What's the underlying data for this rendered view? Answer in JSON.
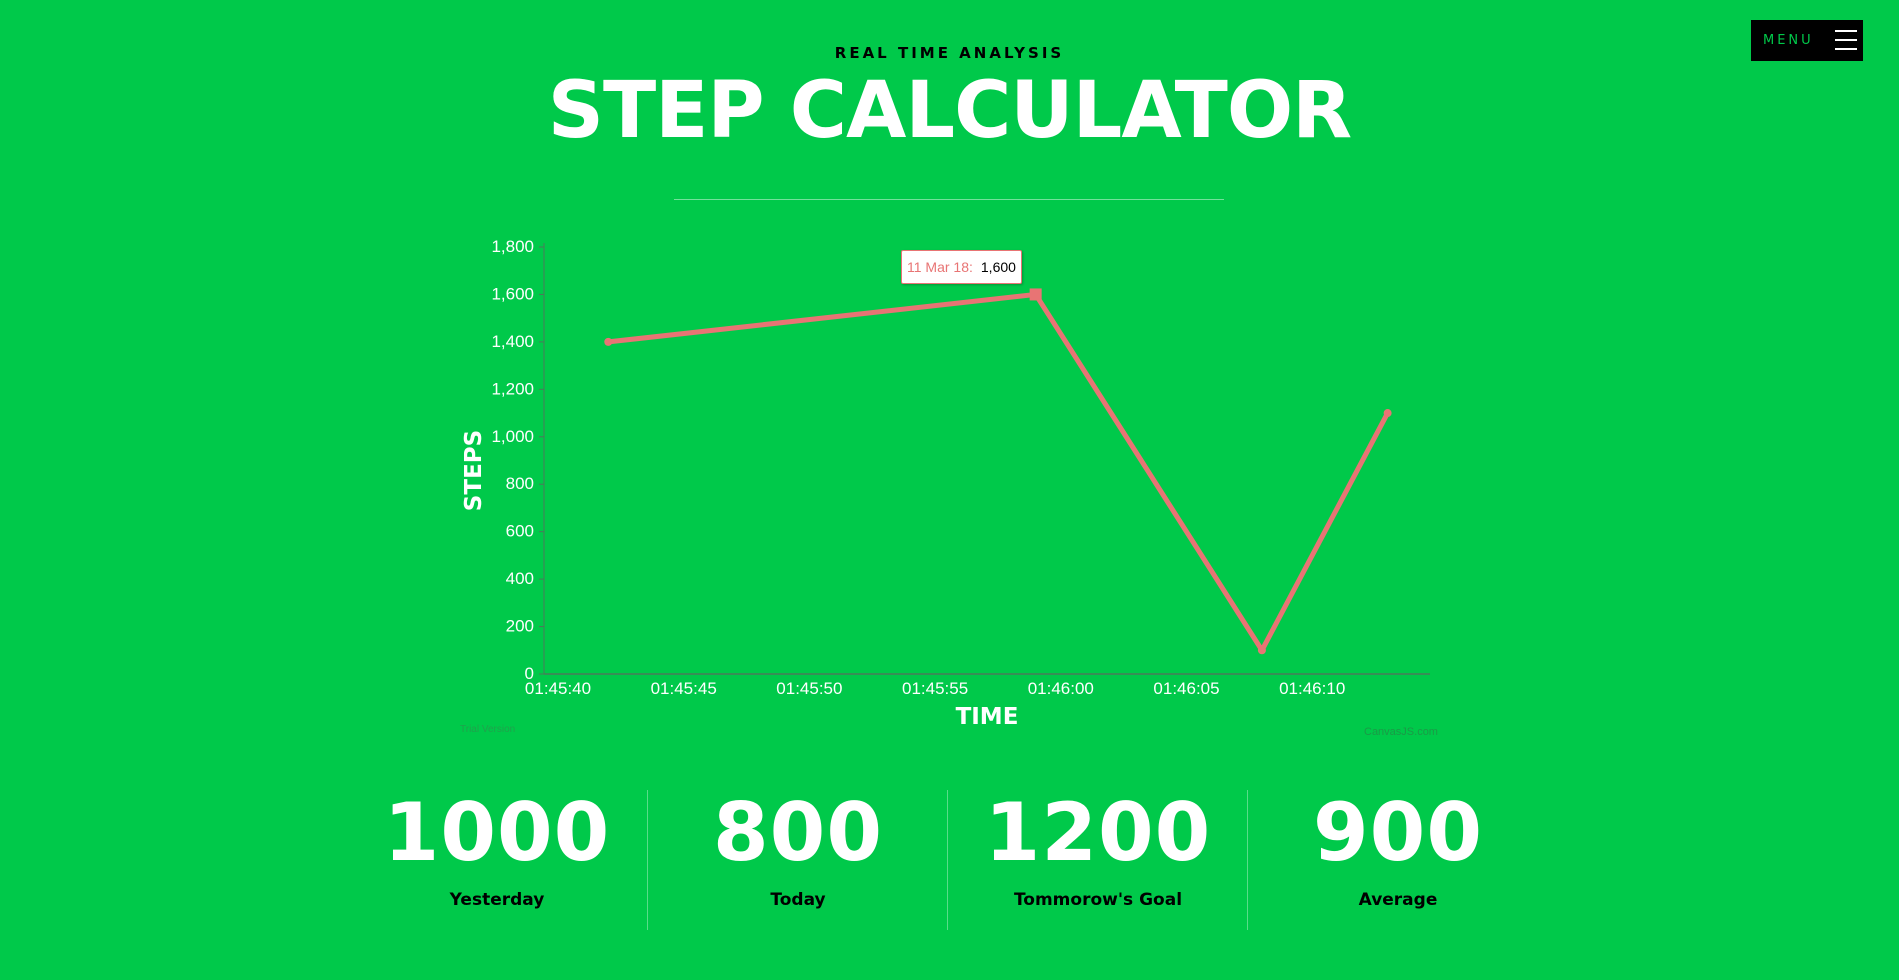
{
  "menu": {
    "label": "MENU"
  },
  "header": {
    "subtitle": "REAL TIME ANALYSIS",
    "title": "STEP CALCULATOR"
  },
  "colors": {
    "background": "#00c94a",
    "line": "#e87474",
    "text_light": "#ffffff",
    "text_dark": "#000000"
  },
  "chart_data": {
    "type": "line",
    "x": [
      "01:45:42",
      "01:45:59",
      "01:46:08",
      "01:46:13"
    ],
    "values": [
      1400,
      1600,
      100,
      1100
    ],
    "xlabel": "TIME",
    "ylabel": "STEPS",
    "ylim": [
      0,
      1800
    ],
    "x_ticks": [
      "01:45:40",
      "01:45:45",
      "01:45:50",
      "01:45:55",
      "01:46:00",
      "01:46:05",
      "01:46:10"
    ],
    "y_ticks": [
      "0",
      "200",
      "400",
      "600",
      "800",
      "1,000",
      "1,200",
      "1,400",
      "1,600",
      "1,800"
    ],
    "grid": false,
    "tooltip": {
      "label": "11 Mar 18:",
      "value": "1,600"
    },
    "watermark": "CanvasJS.com",
    "trial_text": "Trial Version"
  },
  "stats": [
    {
      "value": "1000",
      "label": "Yesterday"
    },
    {
      "value": "800",
      "label": "Today"
    },
    {
      "value": "1200",
      "label": "Tommorow's Goal"
    },
    {
      "value": "900",
      "label": "Average"
    }
  ]
}
